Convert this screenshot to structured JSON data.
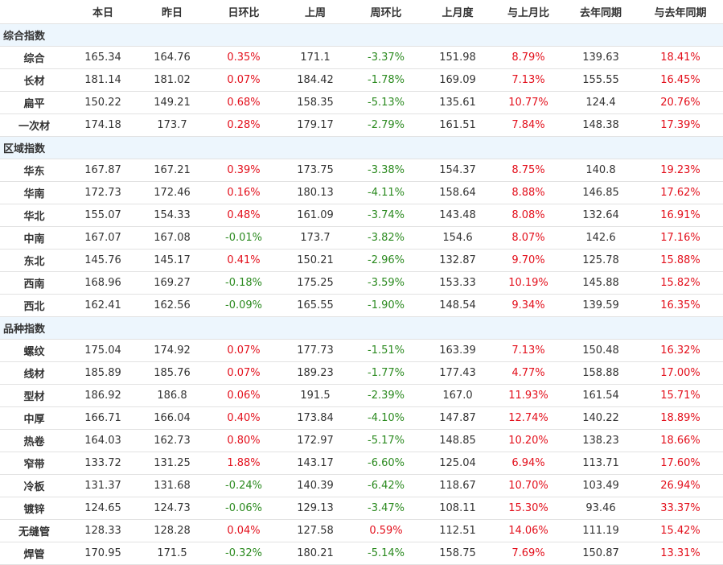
{
  "colors": {
    "up": "#e3101c",
    "down": "#2b8a1f",
    "section_bg": "#edf6fd"
  },
  "headers": [
    "",
    "本日",
    "昨日",
    "日环比",
    "上周",
    "周环比",
    "上月度",
    "与上月比",
    "去年同期",
    "与去年同期"
  ],
  "sections": [
    {
      "title": "综合指数",
      "rows": [
        [
          "综合",
          "165.34",
          "164.76",
          "0.35%",
          "171.1",
          "-3.37%",
          "151.98",
          "8.79%",
          "139.63",
          "18.41%"
        ],
        [
          "长材",
          "181.14",
          "181.02",
          "0.07%",
          "184.42",
          "-1.78%",
          "169.09",
          "7.13%",
          "155.55",
          "16.45%"
        ],
        [
          "扁平",
          "150.22",
          "149.21",
          "0.68%",
          "158.35",
          "-5.13%",
          "135.61",
          "10.77%",
          "124.4",
          "20.76%"
        ],
        [
          "一次材",
          "174.18",
          "173.7",
          "0.28%",
          "179.17",
          "-2.79%",
          "161.51",
          "7.84%",
          "148.38",
          "17.39%"
        ]
      ]
    },
    {
      "title": "区域指数",
      "rows": [
        [
          "华东",
          "167.87",
          "167.21",
          "0.39%",
          "173.75",
          "-3.38%",
          "154.37",
          "8.75%",
          "140.8",
          "19.23%"
        ],
        [
          "华南",
          "172.73",
          "172.46",
          "0.16%",
          "180.13",
          "-4.11%",
          "158.64",
          "8.88%",
          "146.85",
          "17.62%"
        ],
        [
          "华北",
          "155.07",
          "154.33",
          "0.48%",
          "161.09",
          "-3.74%",
          "143.48",
          "8.08%",
          "132.64",
          "16.91%"
        ],
        [
          "中南",
          "167.07",
          "167.08",
          "-0.01%",
          "173.7",
          "-3.82%",
          "154.6",
          "8.07%",
          "142.6",
          "17.16%"
        ],
        [
          "东北",
          "145.76",
          "145.17",
          "0.41%",
          "150.21",
          "-2.96%",
          "132.87",
          "9.70%",
          "125.78",
          "15.88%"
        ],
        [
          "西南",
          "168.96",
          "169.27",
          "-0.18%",
          "175.25",
          "-3.59%",
          "153.33",
          "10.19%",
          "145.88",
          "15.82%"
        ],
        [
          "西北",
          "162.41",
          "162.56",
          "-0.09%",
          "165.55",
          "-1.90%",
          "148.54",
          "9.34%",
          "139.59",
          "16.35%"
        ]
      ]
    },
    {
      "title": "品种指数",
      "rows": [
        [
          "螺纹",
          "175.04",
          "174.92",
          "0.07%",
          "177.73",
          "-1.51%",
          "163.39",
          "7.13%",
          "150.48",
          "16.32%"
        ],
        [
          "线材",
          "185.89",
          "185.76",
          "0.07%",
          "189.23",
          "-1.77%",
          "177.43",
          "4.77%",
          "158.88",
          "17.00%"
        ],
        [
          "型材",
          "186.92",
          "186.8",
          "0.06%",
          "191.5",
          "-2.39%",
          "167.0",
          "11.93%",
          "161.54",
          "15.71%"
        ],
        [
          "中厚",
          "166.71",
          "166.04",
          "0.40%",
          "173.84",
          "-4.10%",
          "147.87",
          "12.74%",
          "140.22",
          "18.89%"
        ],
        [
          "热卷",
          "164.03",
          "162.73",
          "0.80%",
          "172.97",
          "-5.17%",
          "148.85",
          "10.20%",
          "138.23",
          "18.66%"
        ],
        [
          "窄带",
          "133.72",
          "131.25",
          "1.88%",
          "143.17",
          "-6.60%",
          "125.04",
          "6.94%",
          "113.71",
          "17.60%"
        ],
        [
          "冷板",
          "131.37",
          "131.68",
          "-0.24%",
          "140.39",
          "-6.42%",
          "118.67",
          "10.70%",
          "103.49",
          "26.94%"
        ],
        [
          "镀锌",
          "124.65",
          "124.73",
          "-0.06%",
          "129.13",
          "-3.47%",
          "108.11",
          "15.30%",
          "93.46",
          "33.37%"
        ],
        [
          "无缝管",
          "128.33",
          "128.28",
          "0.04%",
          "127.58",
          "0.59%",
          "112.51",
          "14.06%",
          "111.19",
          "15.42%"
        ],
        [
          "焊管",
          "170.95",
          "171.5",
          "-0.32%",
          "180.21",
          "-5.14%",
          "158.75",
          "7.69%",
          "150.87",
          "13.31%"
        ]
      ]
    }
  ]
}
